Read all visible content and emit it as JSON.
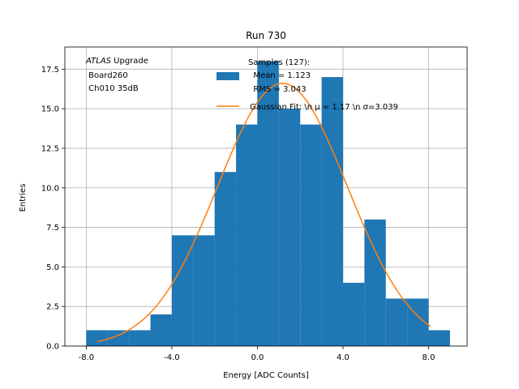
{
  "chart_data": {
    "type": "bar",
    "title": "Run 730",
    "xlabel": "Energy [ADC Counts]",
    "ylabel": "Entries",
    "xlim": [
      -9.0,
      9.8
    ],
    "ylim": [
      0,
      18.9
    ],
    "xticks": [
      -8.0,
      -4.0,
      0.0,
      4.0,
      8.0
    ],
    "xtick_labels": [
      "-8.0",
      "-4.0",
      "0.0",
      "4.0",
      "8.0"
    ],
    "yticks": [
      0.0,
      2.5,
      5.0,
      7.5,
      10.0,
      12.5,
      15.0,
      17.5
    ],
    "ytick_labels": [
      "0.0",
      "2.5",
      "5.0",
      "7.5",
      "10.0",
      "12.5",
      "15.0",
      "17.5"
    ],
    "grid": true,
    "bin_edges": [
      -8.0,
      -7.0,
      -6.0,
      -5.0,
      -4.0,
      -3.0,
      -2.0,
      -1.0,
      0.0,
      1.0,
      2.0,
      3.0,
      4.0,
      5.0,
      6.0,
      7.0,
      8.0,
      9.0
    ],
    "values": [
      1,
      1,
      1,
      2,
      7,
      7,
      11,
      14,
      18,
      15,
      14,
      17,
      4,
      8,
      3,
      3,
      1
    ],
    "fit": {
      "name": "Gaussian Fit: \\n μ = 1.17 \\n σ=3.039",
      "mu": 1.17,
      "sigma": 3.039,
      "amplitude": 16.6,
      "x_range": [
        -7.5,
        8.1
      ]
    },
    "histogram_legend": {
      "line1": "Samples (127):",
      "line2": "  Mean = 1.123",
      "line3": "  RMS = 3.043"
    },
    "annotation": {
      "line1_italic": "ATLAS",
      "line1_rest": " Upgrade",
      "line2": " Board260",
      "line3": " Ch010 35dB"
    },
    "legend_placement": "top-center",
    "colors": {
      "bars": "#1f77b4",
      "fit": "#ff7f0e",
      "grid": "#b0b0b0"
    }
  }
}
